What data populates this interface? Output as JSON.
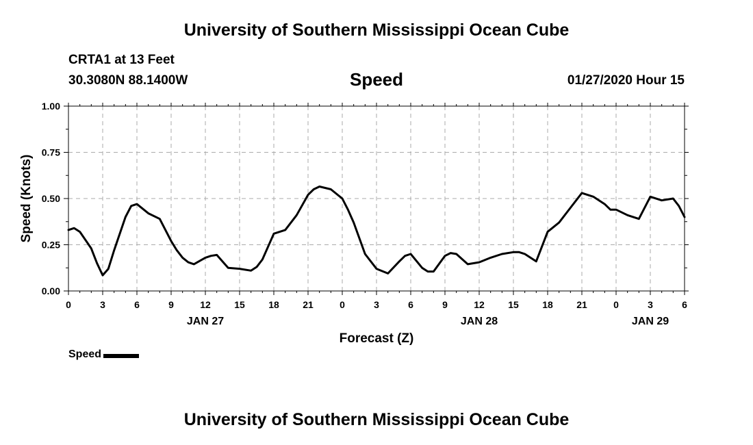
{
  "header": {
    "title": "University of Southern Mississippi Ocean Cube"
  },
  "station": {
    "name": "CRTA1 at 13 Feet",
    "coords": "30.3080N 88.1400W"
  },
  "timestamp": "01/27/2020 Hour 15",
  "footer": {
    "title": "University of Southern Mississippi Ocean Cube"
  },
  "legend": {
    "label": "Speed"
  },
  "colors": {
    "line": "#000000",
    "grid": "#aaaaaa",
    "axis": "#000000"
  },
  "chart_data": {
    "type": "line",
    "title": "Speed",
    "xlabel": "Forecast (Z)",
    "ylabel": "Speed (Knots)",
    "x_units": "hours since 2020-01-27 00Z",
    "xlim": [
      0,
      54
    ],
    "ylim": [
      0,
      1.0
    ],
    "yticks": [
      0.0,
      0.25,
      0.5,
      0.75,
      1.0
    ],
    "ytick_labels": [
      "0.00",
      "0.25",
      "0.50",
      "0.75",
      "1.00"
    ],
    "xticks": [
      0,
      3,
      6,
      9,
      12,
      15,
      18,
      21,
      24,
      27,
      30,
      33,
      36,
      39,
      42,
      45,
      48,
      51,
      54
    ],
    "xtick_labels": [
      "0",
      "3",
      "6",
      "9",
      "12",
      "15",
      "18",
      "21",
      "0",
      "3",
      "6",
      "9",
      "12",
      "15",
      "18",
      "21",
      "0",
      "3",
      "6"
    ],
    "date_labels": [
      {
        "x": 12,
        "label": "JAN 27"
      },
      {
        "x": 36,
        "label": "JAN 28"
      },
      {
        "x": 51,
        "label": "JAN 29"
      }
    ],
    "grid": true,
    "legend_position": "bottom-left",
    "series": [
      {
        "name": "Speed",
        "x": [
          0,
          0.5,
          1,
          2,
          2.5,
          3,
          3.5,
          4,
          5,
          5.5,
          6,
          7,
          8,
          9,
          9.5,
          10,
          10.5,
          11,
          12,
          12.5,
          13,
          14,
          15,
          16,
          16.5,
          17,
          18,
          19,
          20,
          21,
          21.5,
          22,
          23,
          24,
          24.5,
          25,
          26,
          27,
          28,
          29,
          29.5,
          30,
          31,
          31.5,
          32,
          33,
          33.5,
          34,
          35,
          36,
          37,
          38,
          39,
          39.5,
          40,
          41,
          42,
          43,
          44,
          45,
          46,
          47,
          47.5,
          48,
          49,
          50,
          51,
          52,
          53,
          53.5,
          54
        ],
        "y": [
          0.33,
          0.34,
          0.32,
          0.23,
          0.15,
          0.085,
          0.12,
          0.22,
          0.4,
          0.46,
          0.47,
          0.42,
          0.39,
          0.27,
          0.22,
          0.18,
          0.155,
          0.145,
          0.18,
          0.19,
          0.195,
          0.125,
          0.12,
          0.11,
          0.13,
          0.17,
          0.31,
          0.33,
          0.41,
          0.52,
          0.55,
          0.565,
          0.55,
          0.5,
          0.44,
          0.37,
          0.2,
          0.12,
          0.095,
          0.16,
          0.19,
          0.2,
          0.125,
          0.105,
          0.105,
          0.19,
          0.205,
          0.2,
          0.145,
          0.155,
          0.18,
          0.2,
          0.21,
          0.21,
          0.2,
          0.16,
          0.32,
          0.37,
          0.45,
          0.53,
          0.51,
          0.47,
          0.44,
          0.44,
          0.41,
          0.39,
          0.51,
          0.49,
          0.5,
          0.46,
          0.4
        ]
      }
    ]
  }
}
